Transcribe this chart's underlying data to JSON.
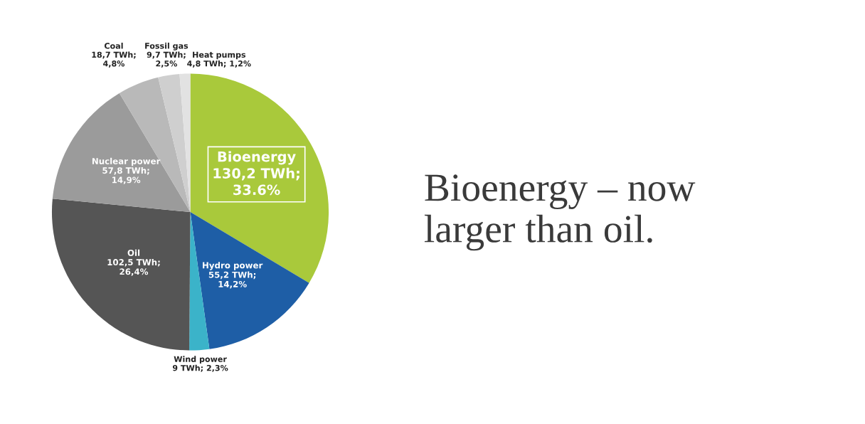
{
  "chart_data": {
    "type": "pie",
    "title": "Bioenergy – now\nlarger than oil.",
    "categories": [
      "Bioenergy",
      "Hydro power",
      "Wind power",
      "Oil",
      "Nuclear power",
      "Coal",
      "Fossil gas",
      "Heat pumps"
    ],
    "values": [
      130.2,
      55.2,
      9,
      102.5,
      57.8,
      18.7,
      9.7,
      4.8
    ],
    "value_labels": [
      "130,2 TWh;\n33.6%",
      "55,2 TWh;\n14,2%",
      "9 TWh; 2,3%",
      "102,5 TWh;\n26,4%",
      "57,8 TWh;\n14,9%",
      "18,7 TWh;\n4,8%",
      "9,7 TWh;\n2,5%",
      "4,8 TWh; 1,2%"
    ],
    "colors": [
      "#a9c93b",
      "#1e5ea6",
      "#3bb3c9",
      "#555555",
      "#9b9b9b",
      "#b9b9b9",
      "#cfcfcf",
      "#e2e2e2"
    ],
    "legend": false
  }
}
